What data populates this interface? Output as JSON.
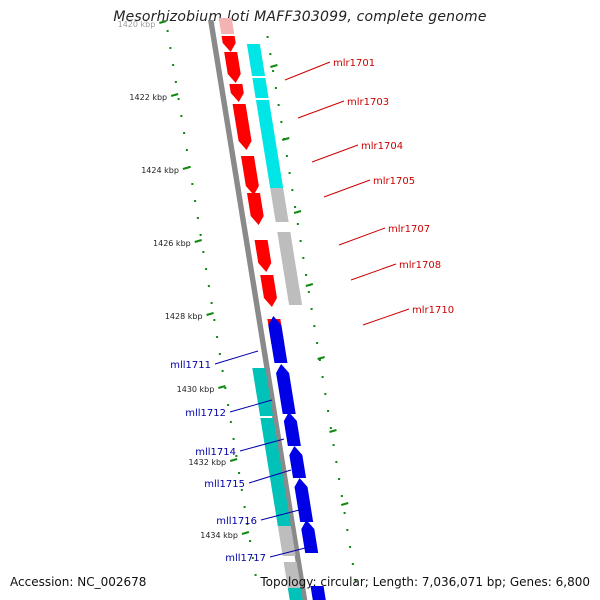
{
  "title": "Mesorhizobium loti MAFF303099, complete genome",
  "footer": {
    "accession": "Accession: NC_002678",
    "summary": "Topology: circular; Length: 7,036,071 bp; Genes: 6,800"
  },
  "colors": {
    "forward_cds": "#ff0000",
    "reverse_cds": "#0000e6",
    "forward_alt": "#00e5e5",
    "reverse_alt": "#00c2b8",
    "gray_feature": "#bdbdbd",
    "forward_label": "#cc0000",
    "reverse_label": "#0000aa",
    "tick": "#118811"
  },
  "ticks": [
    {
      "label": "1420 kbp"
    },
    {
      "label": "1422 kbp"
    },
    {
      "label": "1424 kbp"
    },
    {
      "label": "1426 kbp"
    },
    {
      "label": "1428 kbp"
    },
    {
      "label": "1430 kbp"
    },
    {
      "label": "1432 kbp"
    },
    {
      "label": "1434 kbp"
    }
  ],
  "forward_labels": [
    {
      "label": "mlr1701"
    },
    {
      "label": "mlr1703"
    },
    {
      "label": "mlr1704"
    },
    {
      "label": "mlr1705"
    },
    {
      "label": "mlr1707"
    },
    {
      "label": "mlr1708"
    },
    {
      "label": "mlr1710"
    }
  ],
  "reverse_labels": [
    {
      "label": "mll1711"
    },
    {
      "label": "mll1712"
    },
    {
      "label": "mll1714"
    },
    {
      "label": "mll1715"
    },
    {
      "label": "mll1716"
    },
    {
      "label": "mll1717"
    }
  ]
}
